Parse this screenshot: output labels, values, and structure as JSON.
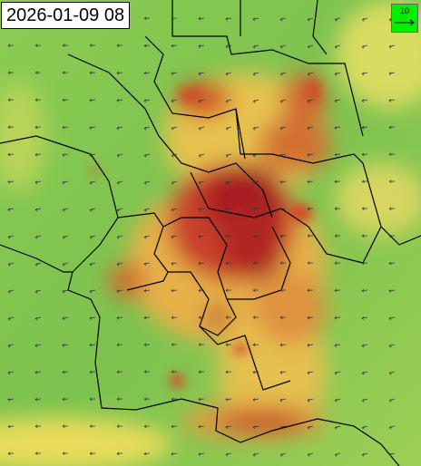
{
  "timestamp": "2026-01-09 08",
  "legend": {
    "label": "10"
  }
}
